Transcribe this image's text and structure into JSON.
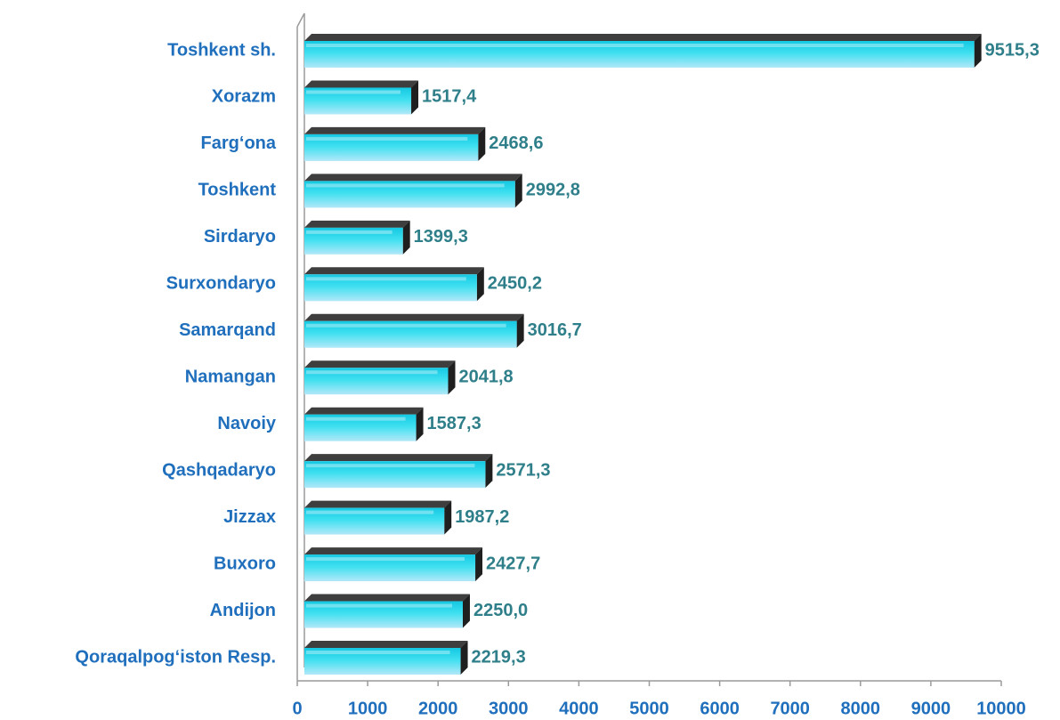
{
  "chart_data": {
    "type": "bar",
    "orientation": "horizontal",
    "categories": [
      "Toshkent sh.",
      "Xorazm",
      "Farg‘ona",
      "Toshkent",
      "Sirdaryo",
      "Surxondaryo",
      "Samarqand",
      "Namangan",
      "Navoiy",
      "Qashqadaryo",
      "Jizzax",
      "Buxoro",
      "Andijon",
      "Qoraqalpog‘iston Resp."
    ],
    "values": [
      9515.3,
      1517.4,
      2468.6,
      2992.8,
      1399.3,
      2450.2,
      3016.7,
      2041.8,
      1587.3,
      2571.3,
      1987.2,
      2427.7,
      2250.0,
      2219.3
    ],
    "value_labels": [
      "9515,3",
      "1517,4",
      "2468,6",
      "2992,8",
      "1399,3",
      "2450,2",
      "3016,7",
      "2041,8",
      "1587,3",
      "2571,3",
      "1987,2",
      "2427,7",
      "2250,0",
      "2219,3"
    ],
    "color": "#2ad4e8",
    "xlim": [
      0,
      10000
    ],
    "xticks": [
      0,
      1000,
      2000,
      3000,
      4000,
      5000,
      6000,
      7000,
      8000,
      9000,
      10000
    ]
  }
}
